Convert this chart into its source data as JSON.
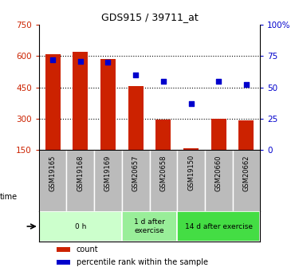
{
  "title": "GDS915 / 39711_at",
  "samples": [
    "GSM19165",
    "GSM19168",
    "GSM19169",
    "GSM20657",
    "GSM20658",
    "GSM19150",
    "GSM20660",
    "GSM20662"
  ],
  "counts": [
    610,
    620,
    585,
    455,
    295,
    158,
    298,
    290
  ],
  "percentiles": [
    72,
    71,
    70,
    60,
    55,
    37,
    55,
    52
  ],
  "bar_bottom": 150,
  "bar_color": "#cc2200",
  "dot_color": "#0000cc",
  "ylim_left": [
    150,
    750
  ],
  "ylim_right": [
    0,
    100
  ],
  "yticks_left": [
    150,
    300,
    450,
    600,
    750
  ],
  "yticks_right": [
    0,
    25,
    50,
    75,
    100
  ],
  "ytick_labels_left": [
    "150",
    "300",
    "450",
    "600",
    "750"
  ],
  "ytick_labels_right": [
    "0",
    "25",
    "50",
    "75",
    "100%"
  ],
  "hgrid_at": [
    300,
    450,
    600
  ],
  "groups": [
    {
      "label": "0 h",
      "start": 0,
      "end": 2,
      "color": "#ccffcc"
    },
    {
      "label": "1 d after\nexercise",
      "start": 3,
      "end": 4,
      "color": "#99ee99"
    },
    {
      "label": "14 d after exercise",
      "start": 5,
      "end": 7,
      "color": "#44dd44"
    }
  ],
  "tick_label_area_color": "#bbbbbb",
  "legend_count_label": "count",
  "legend_percentile_label": "percentile rank within the sample",
  "bar_width": 0.55
}
